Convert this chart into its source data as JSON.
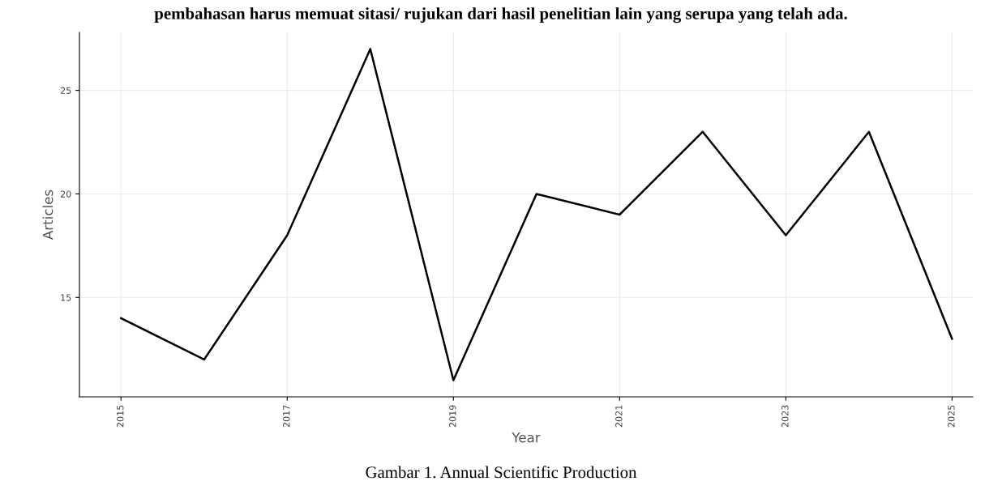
{
  "chart_data": {
    "type": "line",
    "title": "Gambar 1. Annual Scientific Production",
    "annotations": [
      "pembahasan harus memuat sitasi/ rujukan dari hasil penelitian lain yang serupa yang telah ada."
    ],
    "xlabel": "Year",
    "ylabel": "Articles",
    "x": [
      2015,
      2016,
      2017,
      2018,
      2019,
      2020,
      2021,
      2022,
      2023,
      2024,
      2025
    ],
    "series": [
      {
        "color": "#000000",
        "values": [
          14,
          12,
          18,
          27,
          11,
          20,
          19,
          23,
          18,
          23,
          13
        ]
      }
    ],
    "xlim": [
      2014.5,
      2025.25
    ],
    "ylim": [
      10.2,
      27.8
    ],
    "xticks": [
      2015,
      2017,
      2019,
      2021,
      2023,
      2025
    ],
    "yticks": [
      15,
      20,
      25
    ],
    "grid": true,
    "marker": "none",
    "line_style": "solid",
    "legend": false
  }
}
